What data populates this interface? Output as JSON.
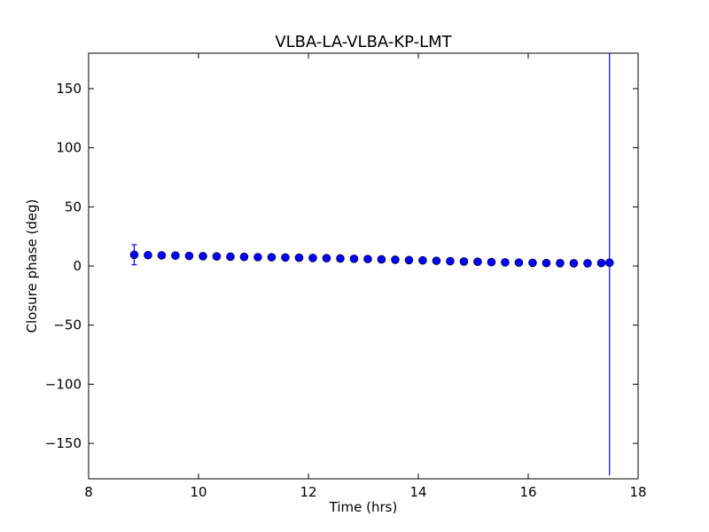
{
  "chart_data": {
    "type": "scatter",
    "title": "VLBA-LA-VLBA-KP-LMT",
    "xlabel": "Time (hrs)",
    "ylabel": "Closure phase (deg)",
    "xlim": [
      8,
      18
    ],
    "ylim": [
      -180,
      180
    ],
    "xticks": [
      8,
      10,
      12,
      14,
      16,
      18
    ],
    "xtick_labels": [
      "8",
      "10",
      "12",
      "14",
      "16",
      "18"
    ],
    "yticks": [
      150,
      100,
      50,
      0,
      -50,
      -100,
      -150
    ],
    "ytick_labels": [
      "150",
      "100",
      "50",
      "0",
      "−50",
      "−100",
      "−150"
    ],
    "grid": false,
    "marker_color": "#0000ff",
    "series": [
      {
        "points": [
          {
            "x": 8.83,
            "y": 9.5,
            "err": 8.5
          },
          {
            "x": 9.08,
            "y": 9.2,
            "err": 0.8
          },
          {
            "x": 9.33,
            "y": 9.0,
            "err": 0.8
          },
          {
            "x": 9.58,
            "y": 8.8,
            "err": 0.8
          },
          {
            "x": 9.83,
            "y": 8.5,
            "err": 0.8
          },
          {
            "x": 10.08,
            "y": 8.3,
            "err": 0.8
          },
          {
            "x": 10.33,
            "y": 8.1,
            "err": 0.8
          },
          {
            "x": 10.58,
            "y": 7.9,
            "err": 0.8
          },
          {
            "x": 10.83,
            "y": 7.7,
            "err": 0.8
          },
          {
            "x": 11.08,
            "y": 7.5,
            "err": 0.8
          },
          {
            "x": 11.33,
            "y": 7.4,
            "err": 0.8
          },
          {
            "x": 11.58,
            "y": 7.2,
            "err": 0.8
          },
          {
            "x": 11.83,
            "y": 7.0,
            "err": 0.8
          },
          {
            "x": 12.08,
            "y": 6.8,
            "err": 0.8
          },
          {
            "x": 12.33,
            "y": 6.6,
            "err": 0.8
          },
          {
            "x": 12.58,
            "y": 6.4,
            "err": 0.8
          },
          {
            "x": 12.83,
            "y": 6.1,
            "err": 0.8
          },
          {
            "x": 13.08,
            "y": 5.9,
            "err": 0.8
          },
          {
            "x": 13.33,
            "y": 5.6,
            "err": 0.8
          },
          {
            "x": 13.58,
            "y": 5.3,
            "err": 0.8
          },
          {
            "x": 13.83,
            "y": 5.0,
            "err": 0.8
          },
          {
            "x": 14.08,
            "y": 4.7,
            "err": 0.8
          },
          {
            "x": 14.33,
            "y": 4.4,
            "err": 0.8
          },
          {
            "x": 14.58,
            "y": 4.1,
            "err": 0.8
          },
          {
            "x": 14.83,
            "y": 3.8,
            "err": 0.8
          },
          {
            "x": 15.08,
            "y": 3.6,
            "err": 0.8
          },
          {
            "x": 15.33,
            "y": 3.3,
            "err": 0.8
          },
          {
            "x": 15.58,
            "y": 3.1,
            "err": 0.8
          },
          {
            "x": 15.83,
            "y": 2.9,
            "err": 0.8
          },
          {
            "x": 16.08,
            "y": 2.7,
            "err": 0.8
          },
          {
            "x": 16.33,
            "y": 2.5,
            "err": 0.8
          },
          {
            "x": 16.58,
            "y": 2.4,
            "err": 0.8
          },
          {
            "x": 16.83,
            "y": 2.3,
            "err": 0.8
          },
          {
            "x": 17.08,
            "y": 2.3,
            "err": 0.8
          },
          {
            "x": 17.33,
            "y": 2.5,
            "err": 0.8
          },
          {
            "x": 17.48,
            "y": 2.8,
            "err": 180
          }
        ]
      }
    ]
  }
}
